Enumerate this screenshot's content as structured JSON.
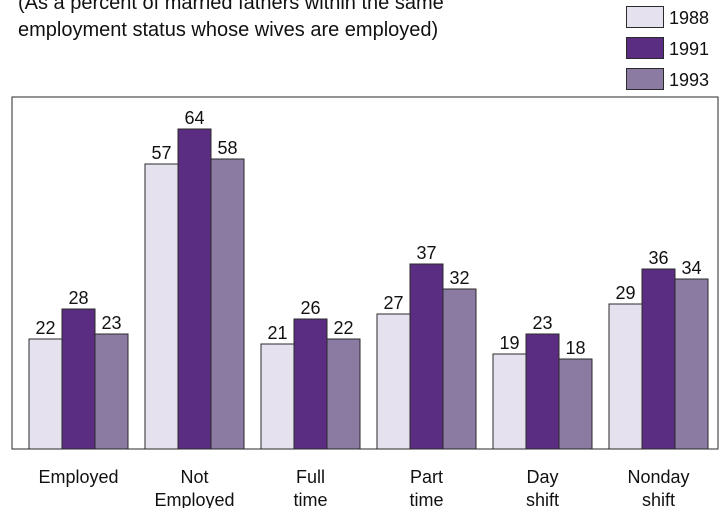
{
  "chart_data": {
    "type": "bar",
    "subtitle": "(As a percent of married fathers within the same\nemployment status whose wives are employed)",
    "categories": [
      "Employed",
      "Not\nEmployed",
      "Full\ntime",
      "Part\ntime",
      "Day\nshift",
      "Nonday\nshift"
    ],
    "series": [
      {
        "name": "1988",
        "color": "#e6e1ef",
        "values": [
          22,
          57,
          21,
          27,
          19,
          29
        ]
      },
      {
        "name": "1991",
        "color": "#5b2d82",
        "values": [
          28,
          64,
          26,
          37,
          23,
          36
        ]
      },
      {
        "name": "1993",
        "color": "#8b7ba3",
        "values": [
          23,
          58,
          22,
          32,
          18,
          34
        ]
      }
    ],
    "ylim": [
      0,
      70
    ],
    "grid": false,
    "legend": "top-right"
  }
}
